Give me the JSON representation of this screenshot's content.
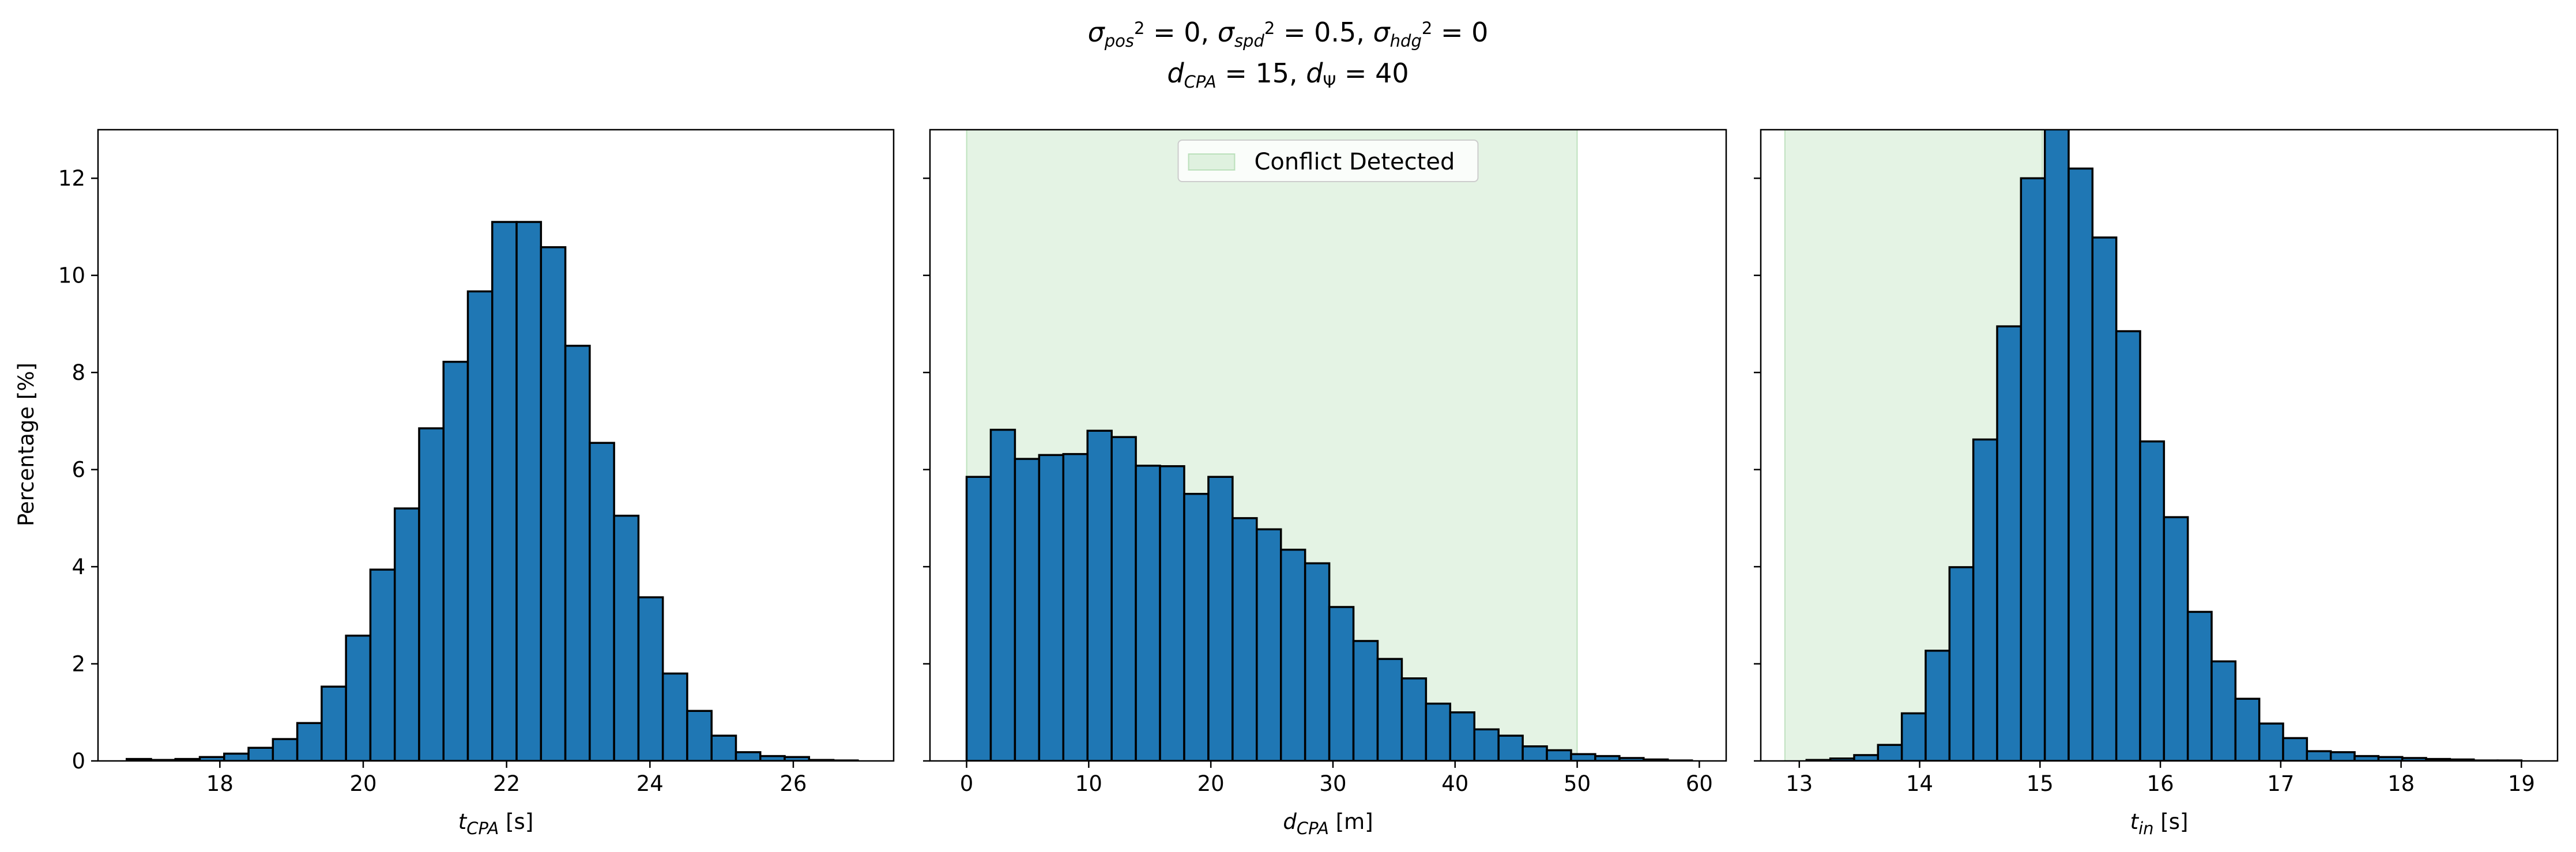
{
  "figure": {
    "title_line1_segments": [
      {
        "t": "σ",
        "style": "italic"
      },
      {
        "t": "pos",
        "style": "italicsub"
      },
      {
        "t": "2",
        "style": "sup"
      },
      {
        "t": " = 0, ",
        "style": "normal"
      },
      {
        "t": "σ",
        "style": "italic"
      },
      {
        "t": "spd",
        "style": "italicsub"
      },
      {
        "t": "2",
        "style": "sup"
      },
      {
        "t": " = 0.5, ",
        "style": "normal"
      },
      {
        "t": "σ",
        "style": "italic"
      },
      {
        "t": "hdg",
        "style": "italicsub"
      },
      {
        "t": "2",
        "style": "sup"
      },
      {
        "t": " = 0",
        "style": "normal"
      }
    ],
    "title_line2_segments": [
      {
        "t": "d",
        "style": "italic"
      },
      {
        "t": "CPA",
        "style": "italicsub"
      },
      {
        "t": " = 15, ",
        "style": "normal"
      },
      {
        "t": "d",
        "style": "italic"
      },
      {
        "t": "Ψ",
        "style": "normalsub"
      },
      {
        "t": " = 40",
        "style": "normal"
      }
    ],
    "ylabel": "Percentage [%]"
  },
  "colors": {
    "bar_fill": "#1f77b4",
    "bar_edge": "#000000",
    "shade_fill": "#2ca02c",
    "shade_opacity": 0.13,
    "axes_edge": "#000000"
  },
  "chart_data": [
    {
      "type": "bar",
      "title": "",
      "xlabel_segments": [
        {
          "t": "t",
          "style": "italic"
        },
        {
          "t": "CPA",
          "style": "italicsub"
        },
        {
          "t": " [s]",
          "style": "normal"
        }
      ],
      "ylabel": "Percentage [%]",
      "xlim": [
        16.3,
        27.4
      ],
      "ylim": [
        0,
        13
      ],
      "xticks": [
        18,
        20,
        22,
        24,
        26
      ],
      "yticks": [
        0,
        2,
        4,
        6,
        8,
        10,
        12
      ],
      "grid": false,
      "bin_start": 16.7,
      "bin_width": 0.34,
      "values": [
        0.04,
        0.02,
        0.04,
        0.08,
        0.15,
        0.27,
        0.45,
        0.78,
        1.53,
        2.58,
        3.94,
        5.2,
        6.85,
        8.22,
        9.67,
        11.1,
        11.1,
        10.58,
        8.55,
        6.55,
        5.05,
        3.37,
        1.8,
        1.03,
        0.52,
        0.18,
        0.1,
        0.08,
        0.02,
        0.01
      ]
    },
    {
      "type": "bar",
      "title": "",
      "xlabel_segments": [
        {
          "t": "d",
          "style": "italic"
        },
        {
          "t": "CPA",
          "style": "italicsub"
        },
        {
          "t": " [m]",
          "style": "normal"
        }
      ],
      "xlim": [
        -3,
        62.2
      ],
      "ylim": [
        0,
        13
      ],
      "xticks": [
        0,
        10,
        20,
        30,
        40,
        50,
        60
      ],
      "yticks": [
        0,
        2,
        4,
        6,
        8,
        10,
        12
      ],
      "grid": false,
      "legend": {
        "label": "Conflict Detected",
        "placement": "upper center"
      },
      "shaded_region": {
        "label": "Conflict Detected",
        "x_range": [
          0,
          50
        ]
      },
      "bin_start": 0,
      "bin_width": 1.98,
      "values": [
        5.85,
        6.82,
        6.22,
        6.3,
        6.32,
        6.8,
        6.67,
        6.08,
        6.07,
        5.5,
        5.85,
        5.0,
        4.77,
        4.35,
        4.07,
        3.17,
        2.47,
        2.1,
        1.7,
        1.18,
        1.0,
        0.65,
        0.52,
        0.3,
        0.22,
        0.14,
        0.1,
        0.06,
        0.03,
        0.01
      ]
    },
    {
      "type": "bar",
      "title": "",
      "xlabel_segments": [
        {
          "t": "t",
          "style": "italic"
        },
        {
          "t": "in",
          "style": "italicsub"
        },
        {
          "t": " [s]",
          "style": "normal"
        }
      ],
      "xlim": [
        12.68,
        19.3
      ],
      "ylim": [
        0,
        13
      ],
      "xticks": [
        13,
        14,
        15,
        16,
        17,
        18,
        19
      ],
      "yticks": [
        0,
        2,
        4,
        6,
        8,
        10,
        12
      ],
      "grid": false,
      "shaded_region": {
        "label": "Conflict Detected",
        "x_range": [
          12.88,
          15.02
        ]
      },
      "bin_start": 13.06,
      "bin_width": 0.198,
      "values": [
        0.02,
        0.05,
        0.12,
        0.33,
        0.98,
        2.27,
        3.99,
        6.62,
        8.95,
        12.0,
        13.4,
        12.2,
        10.78,
        8.85,
        6.58,
        5.02,
        3.07,
        2.05,
        1.28,
        0.77,
        0.47,
        0.2,
        0.18,
        0.1,
        0.08,
        0.06,
        0.04,
        0.03,
        0.01,
        0.01
      ]
    }
  ]
}
